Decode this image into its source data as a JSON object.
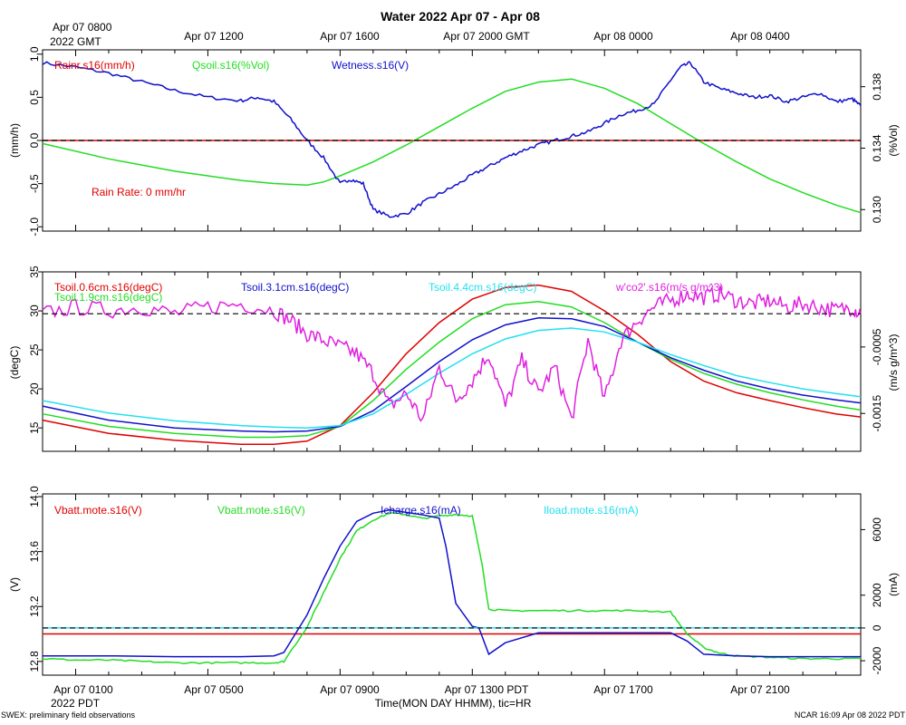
{
  "title": "Water 2022 Apr 07 - Apr 08",
  "top_axis": {
    "first_line1": "Apr 07 0800",
    "first_line2": "2022 GMT",
    "ticks": [
      "Apr 07 1200",
      "Apr 07 1600",
      "Apr 07 2000 GMT",
      "Apr 08 0000",
      "Apr 08 0400"
    ]
  },
  "bottom_axis": {
    "ticks": [
      "Apr 07 0100",
      "Apr 07 0500",
      "Apr 07 0900",
      "Apr 07 1300 PDT",
      "Apr 07 1700",
      "Apr 07 2100"
    ],
    "first_line2": "2022 PDT",
    "xlabel": "Time(MON DAY HHMM), tic=HR"
  },
  "footer": {
    "left": "SWEX: preliminary field observations",
    "right": "NCAR 16:09 Apr 08 2022 PDT"
  },
  "colors": {
    "red": "#e00000",
    "green": "#22dd22",
    "blue": "#1010cc",
    "cyan": "#22e0f0",
    "magenta": "#e020e0"
  },
  "chart_data": [
    {
      "type": "line",
      "panel": "water",
      "x_units": "hours since Apr 07 0000 PDT",
      "xlim": [
        0,
        24.75
      ],
      "ylabel_left": "(mm/h)",
      "ylabel_right": "(%Vol)",
      "ylim_left": [
        -1.05,
        1.05
      ],
      "ylim_right": [
        0.1286,
        0.1404
      ],
      "left_ticks": [
        "1.0",
        "0.5",
        "0.0",
        "-0.5",
        "-1.0"
      ],
      "right_ticks": [
        "0.130",
        "0.134",
        "0.138"
      ],
      "annotation": "Rain Rate: 0 mm/hr",
      "series": [
        {
          "name": "Rainr.s16(mm/h)",
          "axis": "left",
          "color": "#e00000",
          "x": [
            0,
            24.75
          ],
          "y": [
            0,
            0
          ]
        },
        {
          "name": "Qsoil.s16(%Vol)",
          "axis": "right",
          "color": "#22dd22",
          "x": [
            0,
            2,
            4,
            6,
            7,
            8,
            8.5,
            9,
            10,
            11,
            12,
            13,
            14,
            15,
            16,
            17,
            18,
            19,
            20,
            21,
            22,
            23,
            24,
            24.75
          ],
          "y": [
            0.1343,
            0.1333,
            0.1325,
            0.1319,
            0.1317,
            0.1316,
            0.1318,
            0.1322,
            0.1331,
            0.1342,
            0.1354,
            0.1366,
            0.1377,
            0.1383,
            0.1385,
            0.1379,
            0.1369,
            0.1356,
            0.1343,
            0.1331,
            0.132,
            0.1311,
            0.1303,
            0.1298
          ]
        },
        {
          "name": "Wetness.s16(V)",
          "axis": "left",
          "color": "#1010cc",
          "x": [
            0,
            1,
            2,
            3,
            4,
            5,
            6,
            6.5,
            7,
            7.5,
            8,
            8.5,
            9,
            9.3,
            9.7,
            10,
            10.5,
            11,
            11.5,
            12,
            12.5,
            13,
            13.5,
            14,
            14.5,
            15,
            15.5,
            16,
            16.5,
            17,
            17.5,
            18,
            18.5,
            19,
            19.3,
            19.6,
            20,
            20.5,
            21,
            21.5,
            22,
            22.5,
            23,
            23.5,
            24,
            24.5,
            24.75
          ],
          "y": [
            0.9,
            0.85,
            0.78,
            0.68,
            0.58,
            0.5,
            0.46,
            0.5,
            0.45,
            0.25,
            0.0,
            -0.2,
            -0.5,
            -0.45,
            -0.5,
            -0.8,
            -0.88,
            -0.85,
            -0.72,
            -0.62,
            -0.52,
            -0.4,
            -0.3,
            -0.2,
            -0.12,
            -0.05,
            0.0,
            0.05,
            0.1,
            0.2,
            0.3,
            0.35,
            0.42,
            0.7,
            0.85,
            0.9,
            0.68,
            0.6,
            0.55,
            0.5,
            0.52,
            0.45,
            0.5,
            0.55,
            0.45,
            0.48,
            0.4
          ]
        }
      ]
    },
    {
      "type": "line",
      "panel": "soil temperature",
      "x_units": "hours since Apr 07 0000 PDT",
      "xlim": [
        0,
        24.75
      ],
      "ylabel_left": "(degC)",
      "ylabel_right": "(m/s g/m^3)",
      "ylim_left": [
        12,
        35
      ],
      "ylim_right": [
        -0.00207,
        0.00063
      ],
      "left_ticks": [
        "35",
        "30",
        "25",
        "20",
        "15"
      ],
      "right_ticks": [
        "-0.0005",
        "-0.0015"
      ],
      "series": [
        {
          "name": "Tsoil.0.6cm.s16(degC)",
          "axis": "left",
          "color": "#e00000",
          "x": [
            0,
            2,
            4,
            6,
            7,
            8,
            9,
            10,
            11,
            12,
            13,
            14,
            15,
            16,
            17,
            18,
            19,
            20,
            21,
            22,
            23,
            24,
            24.75
          ],
          "y": [
            16.0,
            14.3,
            13.4,
            12.9,
            12.9,
            13.3,
            15.3,
            19.5,
            24.5,
            28.5,
            31.5,
            33.0,
            33.3,
            32.5,
            30.0,
            27.0,
            23.5,
            21.0,
            19.5,
            18.5,
            17.6,
            16.8,
            16.4
          ]
        },
        {
          "name": "Tsoil.1.9cm.s16(degC)",
          "axis": "left",
          "color": "#22dd22",
          "x": [
            0,
            2,
            4,
            6,
            7,
            8,
            9,
            10,
            11,
            12,
            13,
            14,
            15,
            16,
            17,
            18,
            19,
            20,
            21,
            22,
            23,
            24,
            24.75
          ],
          "y": [
            16.8,
            15.2,
            14.3,
            13.8,
            13.8,
            14.0,
            15.2,
            18.5,
            22.5,
            26.0,
            29.0,
            30.8,
            31.2,
            30.5,
            28.5,
            26.0,
            23.8,
            22.0,
            20.6,
            19.5,
            18.6,
            17.8,
            17.3
          ]
        },
        {
          "name": "Tsoil.3.1cm.s16(degC)",
          "axis": "left",
          "color": "#1010cc",
          "x": [
            0,
            2,
            4,
            6,
            7,
            8,
            9,
            10,
            11,
            12,
            13,
            14,
            15,
            16,
            17,
            18,
            19,
            20,
            21,
            22,
            23,
            24,
            24.75
          ],
          "y": [
            17.8,
            16.0,
            15.0,
            14.6,
            14.5,
            14.6,
            15.2,
            17.2,
            20.3,
            23.5,
            26.3,
            28.2,
            29.1,
            29.0,
            28.0,
            26.0,
            24.0,
            22.4,
            21.0,
            20.0,
            19.2,
            18.6,
            18.2
          ]
        },
        {
          "name": "Tsoil.4.4cm.s16(degC)",
          "axis": "left",
          "color": "#22e0f0",
          "x": [
            0,
            2,
            4,
            6,
            7,
            8,
            9,
            10,
            11,
            12,
            13,
            14,
            15,
            16,
            17,
            18,
            19,
            20,
            21,
            22,
            23,
            24,
            24.75
          ],
          "y": [
            18.5,
            16.9,
            15.9,
            15.3,
            15.1,
            15.0,
            15.3,
            16.8,
            19.3,
            22.0,
            24.5,
            26.4,
            27.5,
            27.8,
            27.3,
            26.0,
            24.4,
            23.0,
            21.7,
            20.8,
            20.0,
            19.4,
            19.0
          ]
        },
        {
          "name": "w'co2'.s16(m/s g/m^3)",
          "axis": "right",
          "color": "#e020e0",
          "x": [
            0,
            1,
            2,
            3,
            4,
            5,
            6,
            7,
            7.5,
            8,
            8.5,
            9,
            9.5,
            10,
            10.5,
            11,
            11.5,
            12,
            12.5,
            13,
            13.5,
            14,
            14.5,
            15,
            15.5,
            16,
            16.5,
            17,
            17.5,
            18,
            18.5,
            19,
            19.5,
            20,
            20.5,
            21,
            21.5,
            22,
            22.5,
            23,
            23.5,
            24,
            24.5,
            24.75
          ],
          "y": [
            0.0,
            0.0001,
            5e-05,
            0.0001,
            0.0,
            0.0001,
            0.00015,
            5e-05,
            -0.0001,
            -0.0003,
            -0.0004,
            -0.0005,
            -0.0006,
            -0.0009,
            -0.0014,
            -0.0012,
            -0.0016,
            -0.0008,
            -0.0013,
            -0.001,
            -0.0006,
            -0.0014,
            -0.0007,
            -0.0012,
            -0.0008,
            -0.0016,
            -0.0004,
            -0.0013,
            -0.0004,
            -0.0001,
            0.0001,
            0.0002,
            0.0003,
            0.00025,
            0.0003,
            0.0002,
            0.00015,
            0.0002,
            0.0001,
            0.00015,
            0.0001,
            5e-05,
            0.0001,
            0.0
          ]
        }
      ]
    },
    {
      "type": "line",
      "panel": "power",
      "x_units": "hours since Apr 07 0000 PDT",
      "xlim": [
        0,
        24.75
      ],
      "ylabel_left": "(V)",
      "ylabel_right": "(mA)",
      "ylim_left": [
        12.7,
        14.02
      ],
      "ylim_right": [
        -2880,
        8180
      ],
      "left_ticks": [
        "14.0",
        "13.6",
        "13.2",
        "12.8"
      ],
      "right_ticks": [
        "6000",
        "2000",
        "0",
        "-2000"
      ],
      "series": [
        {
          "name": "Vbatt.mote.s16(V)",
          "axis": "left",
          "color": "#e00000",
          "x": [
            0,
            24.75
          ],
          "y": [
            13.0,
            13.0
          ]
        },
        {
          "name": "Vbatt.mote.s16(V)",
          "axis": "left",
          "color": "#22dd22",
          "x": [
            0,
            1,
            2,
            3,
            4,
            5,
            6,
            7,
            7.3,
            8,
            8.5,
            9,
            9.5,
            10,
            10.5,
            11,
            11.5,
            12,
            12.5,
            13,
            13.3,
            13.5,
            14,
            15,
            16,
            17,
            18,
            19,
            19.5,
            20,
            20.5,
            21,
            22,
            23,
            24,
            24.75
          ],
          "y": [
            12.82,
            12.81,
            12.81,
            12.8,
            12.79,
            12.79,
            12.79,
            12.79,
            12.8,
            13.05,
            13.3,
            13.55,
            13.75,
            13.83,
            13.88,
            13.87,
            13.84,
            13.86,
            13.87,
            13.86,
            13.5,
            13.18,
            13.17,
            13.17,
            13.17,
            13.17,
            13.17,
            13.16,
            13.0,
            12.9,
            12.86,
            12.84,
            12.83,
            12.82,
            12.82,
            12.82
          ]
        },
        {
          "name": "Icharge.s16(mA)",
          "axis": "right",
          "color": "#1010cc",
          "x": [
            0,
            2,
            4,
            6,
            7,
            7.3,
            8,
            8.5,
            9,
            9.5,
            10,
            10.5,
            11,
            11.5,
            12,
            12.2,
            12.5,
            13,
            13.2,
            13.5,
            14,
            15,
            16,
            17,
            18,
            19,
            19.5,
            20,
            21,
            22,
            23,
            24,
            24.75
          ],
          "y": [
            -1700,
            -1700,
            -1750,
            -1750,
            -1700,
            -1500,
            800,
            3000,
            5000,
            6500,
            7000,
            7200,
            7050,
            6900,
            6700,
            5000,
            1500,
            100,
            0,
            -1600,
            -900,
            -300,
            -300,
            -300,
            -300,
            -300,
            -800,
            -1600,
            -1700,
            -1750,
            -1750,
            -1750,
            -1750
          ]
        },
        {
          "name": "Iload.mote.s16(mA)",
          "axis": "right",
          "color": "#22e0f0",
          "x": [
            0,
            24.75
          ],
          "y": [
            0,
            0
          ]
        }
      ]
    }
  ]
}
